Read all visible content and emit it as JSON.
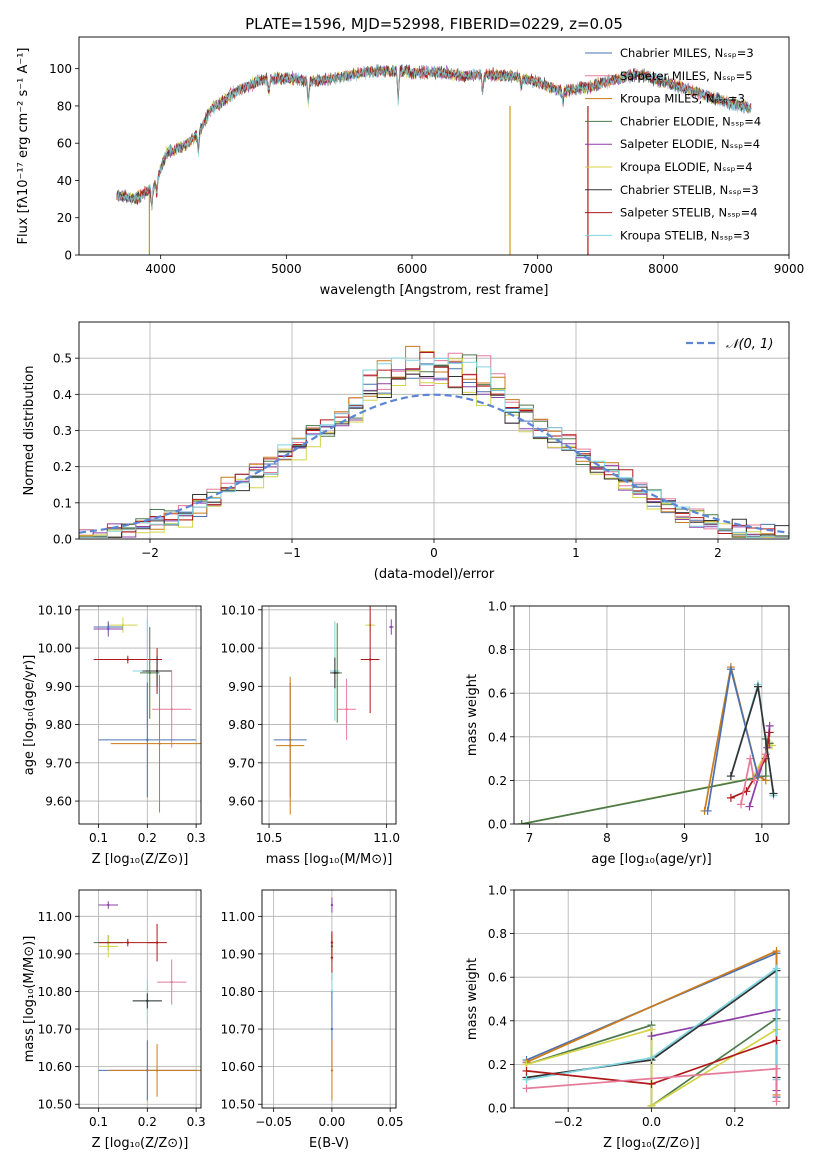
{
  "chart_data": [
    {
      "id": "spectrum",
      "type": "line",
      "title": "PLATE=1596, MJD=52998, FIBERID=0229, z=0.05",
      "xlabel": "wavelength [Angstrom, rest frame]",
      "ylabel": "Flux [fλ10⁻¹⁷ erg cm⁻² s⁻¹ A⁻¹]",
      "xlim": [
        3350,
        9000
      ],
      "ylim": [
        0,
        117
      ],
      "xticks": [
        4000,
        5000,
        6000,
        7000,
        8000,
        9000
      ],
      "yticks": [
        0,
        20,
        40,
        60,
        80,
        100
      ],
      "grid": false,
      "legend_position": "top-right",
      "series": [
        {
          "name": "Chabrier MILES, Nₛₛₚ=3",
          "color": "#4c72b0"
        },
        {
          "name": "Salpeter MILES, Nₛₛₚ=5",
          "color": "#e57a9a"
        },
        {
          "name": "Kroupa MILES, Nₛₛₚ=3",
          "color": "#cc7a1a"
        },
        {
          "name": "Chabrier ELODIE, Nₛₛₚ=4",
          "color": "#4d7a4d"
        },
        {
          "name": "Salpeter ELODIE, Nₛₛₚ=4",
          "color": "#8e3fa8"
        },
        {
          "name": "Kroupa ELODIE, Nₛₛₚ=4",
          "color": "#d4d44a"
        },
        {
          "name": "Chabrier STELIB, Nₛₛₚ=3",
          "color": "#333333"
        },
        {
          "name": "Salpeter STELIB, Nₛₛₚ=4",
          "color": "#b01a1a"
        },
        {
          "name": "Kroupa STELIB, Nₛₛₚ=3",
          "color": "#7fd4e0"
        }
      ],
      "continuum": [
        [
          3650,
          32
        ],
        [
          3800,
          30
        ],
        [
          3950,
          37
        ],
        [
          4050,
          55
        ],
        [
          4200,
          59
        ],
        [
          4300,
          65
        ],
        [
          4400,
          78
        ],
        [
          4600,
          88
        ],
        [
          4800,
          94
        ],
        [
          5000,
          95
        ],
        [
          5200,
          93
        ],
        [
          5400,
          95
        ],
        [
          5600,
          98
        ],
        [
          5800,
          99
        ],
        [
          6000,
          98
        ],
        [
          6200,
          98
        ],
        [
          6400,
          96
        ],
        [
          6600,
          97
        ],
        [
          6800,
          96
        ],
        [
          7000,
          93
        ],
        [
          7100,
          90
        ],
        [
          7200,
          88
        ],
        [
          7400,
          90
        ],
        [
          7600,
          94
        ],
        [
          7800,
          97
        ],
        [
          8000,
          93
        ],
        [
          8200,
          89
        ],
        [
          8400,
          84
        ],
        [
          8600,
          80
        ],
        [
          8700,
          79
        ]
      ],
      "dips": [
        [
          3930,
          10
        ],
        [
          3970,
          8
        ],
        [
          4300,
          10
        ],
        [
          4861,
          8
        ],
        [
          5175,
          12
        ],
        [
          5890,
          16
        ],
        [
          6563,
          10
        ],
        [
          6870,
          5
        ],
        [
          7200,
          6
        ]
      ],
      "glitches": [
        [
          3910,
          0
        ],
        [
          6780,
          0
        ],
        [
          7400,
          0
        ]
      ]
    },
    {
      "id": "residuals",
      "type": "histogram",
      "xlabel": "(data-model)/error",
      "ylabel": "Normed distribution",
      "xlim": [
        -2.5,
        2.5
      ],
      "ylim": [
        0,
        0.6
      ],
      "xticks": [
        -2,
        -1,
        0,
        1,
        2
      ],
      "yticks": [
        0.0,
        0.1,
        0.2,
        0.3,
        0.4,
        0.5
      ],
      "grid": true,
      "legend_position": "top-right",
      "reference": {
        "label": "𝒩(0, 1)",
        "color": "#5b86d6",
        "mu": 0,
        "sigma": 1
      },
      "bin_width": 0.1
    },
    {
      "id": "age-vs-z",
      "type": "scatter",
      "xlabel": "Z [log₁₀(Z/Z⊙)]",
      "ylabel": "age  [log₁₀(age/yr)]",
      "xlim": [
        0.06,
        0.31
      ],
      "ylim": [
        9.54,
        10.11
      ],
      "xticks": [
        0.1,
        0.2,
        0.3
      ],
      "yticks": [
        9.6,
        9.7,
        9.8,
        9.9,
        10.0,
        10.1
      ],
      "grid": true,
      "points": [
        {
          "x": 0.15,
          "y": 10.06,
          "xerr": 0.03,
          "yerr": 0.02,
          "color": "#d4d44a"
        },
        {
          "x": 0.12,
          "y": 10.05,
          "xerr": 0.03,
          "yerr": 0.02,
          "color": "#8e3fa8"
        },
        {
          "x": 0.12,
          "y": 10.055,
          "xerr": 0.03,
          "yerr": 0.01,
          "color": "#4c72b0"
        },
        {
          "x": 0.16,
          "y": 9.97,
          "xerr": 0.07,
          "yerr": 0.01,
          "color": "#b01a1a"
        },
        {
          "x": 0.22,
          "y": 9.94,
          "xerr": 0.03,
          "yerr": 0.06,
          "color": "#b01a1a"
        },
        {
          "x": 0.2,
          "y": 9.94,
          "xerr": 0.03,
          "yerr": 0.14,
          "color": "#7fd4e0"
        },
        {
          "x": 0.205,
          "y": 9.935,
          "xerr": 0.02,
          "yerr": 0.12,
          "color": "#4d7a4d"
        },
        {
          "x": 0.22,
          "y": 9.94,
          "xerr": 0.03,
          "yerr": 0.04,
          "color": "#333333"
        },
        {
          "x": 0.25,
          "y": 9.84,
          "xerr": 0.04,
          "yerr": 0.1,
          "color": "#e57a9a"
        },
        {
          "x": 0.2,
          "y": 9.76,
          "xerr": 0.1,
          "yerr": 0.15,
          "color": "#4c72b0"
        },
        {
          "x": 0.225,
          "y": 9.75,
          "xerr": 0.1,
          "yerr": 0.18,
          "color": "#cc7a1a"
        }
      ]
    },
    {
      "id": "age-vs-mass",
      "type": "scatter",
      "xlabel": "mass [log₁₀(M/M⊙)]",
      "ylabel": "",
      "xlim": [
        10.47,
        11.04
      ],
      "ylim": [
        9.54,
        10.11
      ],
      "xticks": [
        10.5,
        11.0
      ],
      "yticks": [
        9.6,
        9.7,
        9.8,
        9.9,
        10.0,
        10.1
      ],
      "grid": true,
      "points": [
        {
          "x": 10.93,
          "y": 10.06,
          "xerr": 0.02,
          "yerr": 0.02,
          "color": "#d4d44a"
        },
        {
          "x": 11.02,
          "y": 10.055,
          "xerr": 0.01,
          "yerr": 0.02,
          "color": "#8e3fa8"
        },
        {
          "x": 10.93,
          "y": 9.97,
          "xerr": 0.04,
          "yerr": 0.14,
          "color": "#b01a1a"
        },
        {
          "x": 10.78,
          "y": 9.94,
          "xerr": 0.02,
          "yerr": 0.13,
          "color": "#7fd4e0"
        },
        {
          "x": 10.79,
          "y": 9.935,
          "xerr": 0.02,
          "yerr": 0.13,
          "color": "#4d7a4d"
        },
        {
          "x": 10.78,
          "y": 9.935,
          "xerr": 0.02,
          "yerr": 0.04,
          "color": "#333333"
        },
        {
          "x": 10.83,
          "y": 9.84,
          "xerr": 0.04,
          "yerr": 0.08,
          "color": "#e57a9a"
        },
        {
          "x": 10.59,
          "y": 9.76,
          "xerr": 0.07,
          "yerr": 0.15,
          "color": "#4c72b0"
        },
        {
          "x": 10.59,
          "y": 9.745,
          "xerr": 0.06,
          "yerr": 0.18,
          "color": "#cc7a1a"
        }
      ]
    },
    {
      "id": "weight-vs-age",
      "type": "line",
      "xlabel": "age  [log₁₀(age/yr)]",
      "ylabel": "mass weight",
      "xlim": [
        6.8,
        10.35
      ],
      "ylim": [
        0,
        1
      ],
      "xticks": [
        7,
        8,
        9,
        10
      ],
      "yticks": [
        0.0,
        0.2,
        0.4,
        0.6,
        0.8,
        1.0
      ],
      "grid": true,
      "series": [
        {
          "color": "#d4d44a",
          "x": [
            6.9,
            9.88,
            10.1,
            10.13
          ],
          "y": [
            0.0,
            0.21,
            0.36,
            0.36
          ]
        },
        {
          "color": "#4d7a4d",
          "x": [
            6.9,
            10.05,
            10.05,
            10.1
          ],
          "y": [
            0.0,
            0.22,
            0.39,
            0.37
          ]
        },
        {
          "color": "#8e3fa8",
          "x": [
            9.84,
            10.07,
            10.1
          ],
          "y": [
            0.08,
            0.35,
            0.45
          ]
        },
        {
          "color": "#b01a1a",
          "x": [
            9.6,
            9.8,
            10.05,
            10.1
          ],
          "y": [
            0.12,
            0.15,
            0.3,
            0.42
          ]
        },
        {
          "color": "#e57a9a",
          "x": [
            9.73,
            9.85,
            9.9,
            10.05
          ],
          "y": [
            0.09,
            0.3,
            0.2,
            0.32
          ]
        },
        {
          "color": "#cc7a1a",
          "x": [
            9.26,
            9.6,
            9.95,
            10.05
          ],
          "y": [
            0.06,
            0.72,
            0.22,
            0.2
          ]
        },
        {
          "color": "#4c72b0",
          "x": [
            9.3,
            9.6,
            9.95
          ],
          "y": [
            0.06,
            0.71,
            0.22
          ]
        },
        {
          "color": "#7fd4e0",
          "x": [
            9.6,
            9.95,
            10.15
          ],
          "y": [
            0.22,
            0.64,
            0.13
          ]
        },
        {
          "color": "#333333",
          "x": [
            9.6,
            9.95,
            10.15
          ],
          "y": [
            0.22,
            0.63,
            0.14
          ]
        }
      ]
    },
    {
      "id": "mass-vs-z",
      "type": "scatter",
      "xlabel": "Z [log₁₀(Z/Z⊙)]",
      "ylabel": "mass [log₁₀(M/M⊙)]",
      "xlim": [
        0.06,
        0.31
      ],
      "ylim": [
        10.49,
        11.07
      ],
      "xticks": [
        0.1,
        0.2,
        0.3
      ],
      "yticks": [
        10.5,
        10.6,
        10.7,
        10.8,
        10.9,
        11.0
      ],
      "grid": true,
      "points": [
        {
          "x": 0.12,
          "y": 11.03,
          "xerr": 0.02,
          "yerr": 0.01,
          "color": "#8e3fa8"
        },
        {
          "x": 0.12,
          "y": 10.93,
          "xerr": 0.03,
          "yerr": 0.02,
          "color": "#4d7a4d"
        },
        {
          "x": 0.12,
          "y": 10.92,
          "xerr": 0.02,
          "yerr": 0.03,
          "color": "#d4d44a"
        },
        {
          "x": 0.16,
          "y": 10.93,
          "xerr": 0.06,
          "yerr": 0.01,
          "color": "#b01a1a"
        },
        {
          "x": 0.22,
          "y": 10.93,
          "xerr": 0.02,
          "yerr": 0.05,
          "color": "#b01a1a"
        },
        {
          "x": 0.2,
          "y": 10.775,
          "xerr": 0.03,
          "yerr": 0.06,
          "color": "#7fd4e0"
        },
        {
          "x": 0.2,
          "y": 10.775,
          "xerr": 0.03,
          "yerr": 0.02,
          "color": "#333333"
        },
        {
          "x": 0.25,
          "y": 10.825,
          "xerr": 0.03,
          "yerr": 0.06,
          "color": "#e57a9a"
        },
        {
          "x": 0.2,
          "y": 10.59,
          "xerr": 0.1,
          "yerr": 0.08,
          "color": "#4c72b0"
        },
        {
          "x": 0.22,
          "y": 10.59,
          "xerr": 0.1,
          "yerr": 0.07,
          "color": "#cc7a1a"
        }
      ]
    },
    {
      "id": "mass-vs-ebv",
      "type": "scatter",
      "xlabel": "E(B-V)",
      "ylabel": "",
      "xlim": [
        -0.06,
        0.055
      ],
      "ylim": [
        10.49,
        11.07
      ],
      "xticks": [
        -0.05,
        0.0,
        0.05
      ],
      "yticks": [
        10.5,
        10.6,
        10.7,
        10.8,
        10.9,
        11.0
      ],
      "grid": true,
      "points": [
        {
          "x": 0.0,
          "y": 11.03,
          "xerr": 0.0,
          "yerr": 0.02,
          "color": "#8e3fa8"
        },
        {
          "x": 0.0,
          "y": 10.92,
          "xerr": 0.0,
          "yerr": 0.04,
          "color": "#4d7a4d"
        },
        {
          "x": 0.0,
          "y": 10.93,
          "xerr": 0.0,
          "yerr": 0.03,
          "color": "#b01a1a"
        },
        {
          "x": 0.0,
          "y": 10.89,
          "xerr": 0.0,
          "yerr": 0.06,
          "color": "#b01a1a"
        },
        {
          "x": 0.0,
          "y": 10.8,
          "xerr": 0.0,
          "yerr": 0.05,
          "color": "#7fd4e0"
        },
        {
          "x": 0.0,
          "y": 10.7,
          "xerr": 0.0,
          "yerr": 0.1,
          "color": "#4c72b0"
        },
        {
          "x": 0.0,
          "y": 10.59,
          "xerr": 0.0,
          "yerr": 0.08,
          "color": "#cc7a1a"
        }
      ]
    },
    {
      "id": "weight-vs-z",
      "type": "line",
      "xlabel": "Z [log₁₀(Z/Z⊙)]",
      "ylabel": "mass weight",
      "xlim": [
        -0.33,
        0.33
      ],
      "ylim": [
        0,
        1
      ],
      "xticks": [
        -0.2,
        0.0,
        0.2
      ],
      "yticks": [
        0.0,
        0.2,
        0.4,
        0.6,
        0.8,
        1.0
      ],
      "grid": true,
      "series": [
        {
          "color": "#4c72b0",
          "x": [
            -0.3,
            0.3,
            0.3
          ],
          "y": [
            0.22,
            0.71,
            0.05
          ]
        },
        {
          "color": "#cc7a1a",
          "x": [
            -0.3,
            0.3,
            0.3
          ],
          "y": [
            0.21,
            0.72,
            0.06
          ]
        },
        {
          "color": "#4d7a4d",
          "x": [
            -0.3,
            0.0,
            0.0,
            0.3
          ],
          "y": [
            0.2,
            0.38,
            0.01,
            0.41
          ]
        },
        {
          "color": "#d4d44a",
          "x": [
            -0.3,
            0.0,
            0.0,
            0.3
          ],
          "y": [
            0.2,
            0.36,
            0.01,
            0.36
          ]
        },
        {
          "color": "#8e3fa8",
          "x": [
            0.0,
            0.3,
            0.3
          ],
          "y": [
            0.33,
            0.45,
            0.08
          ]
        },
        {
          "color": "#333333",
          "x": [
            -0.3,
            0.0,
            0.3,
            0.3
          ],
          "y": [
            0.14,
            0.22,
            0.63,
            0.14
          ]
        },
        {
          "color": "#7fd4e0",
          "x": [
            -0.3,
            0.0,
            0.3,
            0.3
          ],
          "y": [
            0.13,
            0.23,
            0.64,
            0.13
          ]
        },
        {
          "color": "#b01a1a",
          "x": [
            -0.3,
            0.0,
            0.3
          ],
          "y": [
            0.17,
            0.11,
            0.31
          ]
        },
        {
          "color": "#e57a9a",
          "x": [
            -0.3,
            0.3,
            0.3
          ],
          "y": [
            0.09,
            0.18,
            0.03
          ]
        }
      ]
    }
  ]
}
